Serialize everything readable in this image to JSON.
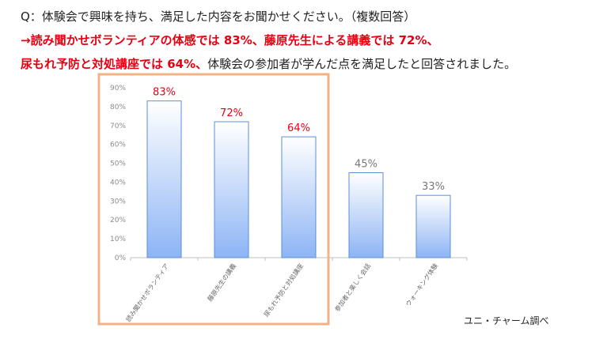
{
  "question": "Q：体験会で興味を持ち、満足した内容をお聞かせください。（複数回答）",
  "answer": {
    "arrow": "→",
    "part1_red": "読み聞かせボランティアの体感では 83%、藤原先生による講義では 72%、",
    "part2_red": "尿もれ予防と対処講座では 64%、",
    "part2_black": "体験会の参加者が学んだ点を満足したと回答されました。"
  },
  "source": "ユニ・チャーム調べ",
  "colors": {
    "highlight_label": "#e60012",
    "normal_label": "#777777",
    "highlight_box": "#f4b183",
    "bar_top": "#ffffff",
    "bar_bottom": "#8db4f5",
    "bar_stroke": "#5b8fd9"
  },
  "chart_data": {
    "type": "bar",
    "categories": [
      "読み聞かせボランティア",
      "藤原先生の講義",
      "尿もれ予防と対処講座",
      "参加者と楽しく会話",
      "ウォーキング体験"
    ],
    "values": [
      83,
      72,
      64,
      45,
      33
    ],
    "data_labels": [
      "83%",
      "72%",
      "64%",
      "45%",
      "33%"
    ],
    "highlighted": [
      true,
      true,
      true,
      false,
      false
    ],
    "yticks": [
      "0%",
      "10%",
      "20%",
      "30%",
      "40%",
      "50%",
      "60%",
      "70%",
      "80%",
      "90%"
    ],
    "ylim": [
      0,
      90
    ],
    "grid": false,
    "legend": "none"
  }
}
